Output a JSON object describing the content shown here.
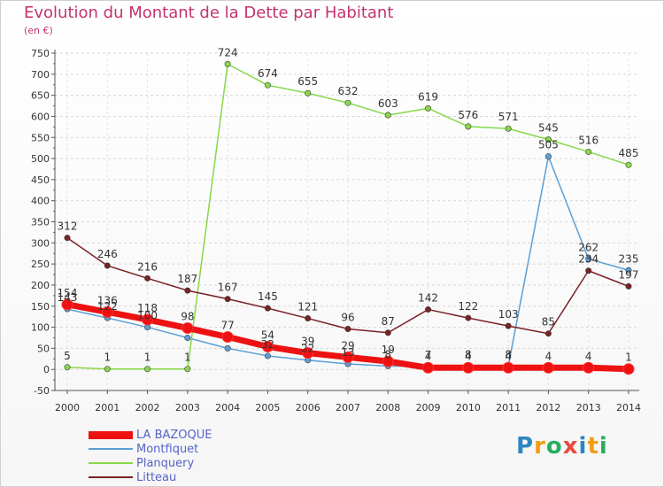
{
  "chart_data": {
    "type": "line",
    "title": "Evolution du Montant de la Dette par Habitant",
    "subtitle": "(en €)",
    "xlabel": "",
    "ylabel": "",
    "x": [
      "2000",
      "2001",
      "2002",
      "2003",
      "2004",
      "2005",
      "2006",
      "2007",
      "2008",
      "2009",
      "2010",
      "2011",
      "2012",
      "2013",
      "2014"
    ],
    "ylim": [
      -50,
      750
    ],
    "yticks": [
      "-50",
      "0",
      "50",
      "100",
      "150",
      "200",
      "250",
      "300",
      "350",
      "400",
      "450",
      "500",
      "550",
      "600",
      "650",
      "700",
      "750"
    ],
    "grid": true,
    "legend_position": "bottom-left",
    "series": [
      {
        "name": "LA BAZOQUE",
        "color": "#ee1111",
        "values": [
          154,
          136,
          118,
          98,
          77,
          54,
          39,
          29,
          19,
          4,
          4,
          4,
          4,
          4,
          1
        ],
        "labels": [
          "154",
          "136",
          "118",
          "98",
          "77",
          "54",
          "39",
          "29",
          "19",
          "4",
          "4",
          "4",
          "4",
          "4",
          "1"
        ]
      },
      {
        "name": "Montfiquet",
        "color": "#5a9fd6",
        "values": [
          143,
          122,
          100,
          75,
          50,
          32,
          22,
          13,
          8,
          7,
          8,
          8,
          505,
          262,
          235
        ],
        "labels": [
          "143",
          "122",
          "100",
          "",
          "",
          "32",
          "22",
          "13",
          "8",
          "7",
          "8",
          "8",
          "505",
          "262",
          "235"
        ]
      },
      {
        "name": "Planquery",
        "color": "#88d848",
        "values": [
          5,
          1,
          1,
          1,
          724,
          674,
          655,
          632,
          603,
          619,
          576,
          571,
          545,
          516,
          485
        ],
        "labels": [
          "5",
          "1",
          "1",
          "1",
          "724",
          "674",
          "655",
          "632",
          "603",
          "619",
          "576",
          "571",
          "545",
          "516",
          "485"
        ]
      },
      {
        "name": "Litteau",
        "color": "#7a2226",
        "values": [
          312,
          246,
          216,
          187,
          167,
          145,
          121,
          96,
          87,
          142,
          122,
          103,
          85,
          234,
          197
        ],
        "labels": [
          "312",
          "246",
          "216",
          "187",
          "167",
          "145",
          "121",
          "96",
          "87",
          "142",
          "122",
          "103",
          "85",
          "234",
          "197"
        ]
      }
    ]
  },
  "legend": [
    {
      "label": "LA BAZOQUE",
      "color": "#ee1111"
    },
    {
      "label": "Montfiquet",
      "color": "#5a9fd6"
    },
    {
      "label": "Planquery",
      "color": "#88d848"
    },
    {
      "label": "Litteau",
      "color": "#7a2226"
    }
  ],
  "logo": {
    "letters": [
      "P",
      "r",
      "o",
      "x",
      "i",
      "t",
      "i"
    ],
    "colors": [
      "#2e86c1",
      "#f39c12",
      "#27ae60",
      "#e74c3c",
      "#2e86c1",
      "#f39c12",
      "#27ae60"
    ]
  }
}
